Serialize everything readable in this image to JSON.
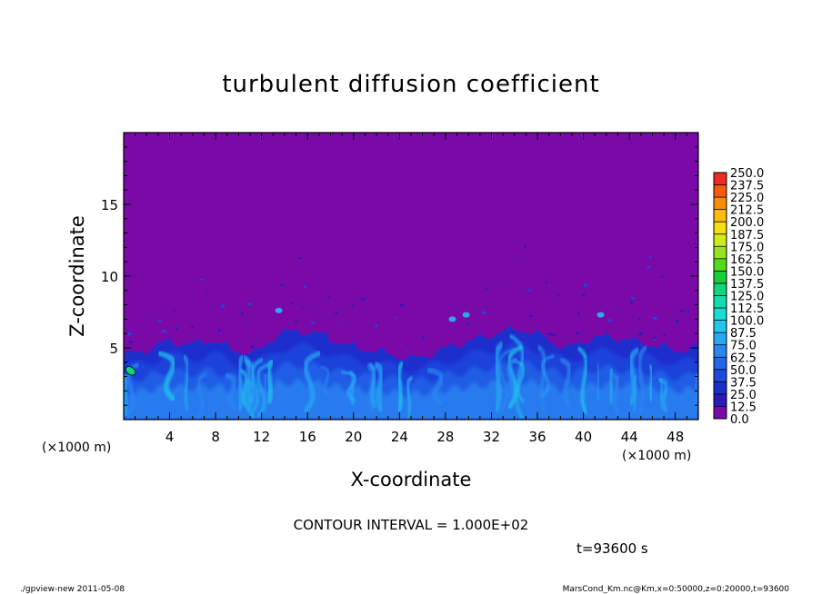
{
  "chart_data": {
    "type": "heatmap",
    "title": "turbulent diffusion coefficient",
    "xlabel": "X-coordinate",
    "ylabel": "Z-coordinate",
    "xunit": "(×1000 m)",
    "yunit": "(×1000 m)",
    "xlim": [
      0,
      50
    ],
    "ylim": [
      0,
      20
    ],
    "xticks": [
      "4",
      "8",
      "12",
      "16",
      "20",
      "24",
      "28",
      "32",
      "36",
      "40",
      "44",
      "48"
    ],
    "yticks": [
      "5",
      "10",
      "15"
    ],
    "colorbar": {
      "levels": [
        "0.0",
        "12.5",
        "25.0",
        "37.5",
        "50.0",
        "62.5",
        "75.0",
        "87.5",
        "100.0",
        "112.5",
        "125.0",
        "137.5",
        "150.0",
        "162.5",
        "175.0",
        "187.5",
        "200.0",
        "212.5",
        "225.0",
        "237.5",
        "250.0"
      ],
      "colors": [
        "#7a0aa8",
        "#2a1ab8",
        "#1e2ecc",
        "#1f48de",
        "#2266ea",
        "#2c86f2",
        "#28a8f4",
        "#22c6ee",
        "#19dcd6",
        "#14dcae",
        "#12d67a",
        "#1ccc3a",
        "#52d81c",
        "#98e21e",
        "#d0ea1c",
        "#f4e010",
        "#fcbc0a",
        "#fc8c08",
        "#f85a0c",
        "#f02a22",
        "#f27a8a"
      ]
    },
    "background_value": 0.0,
    "boundary_layer_top_km": [
      4.5,
      4.8,
      5.5,
      5.2,
      5.6,
      4.8,
      4.6,
      6.0,
      6.2,
      5.9,
      5.2,
      4.9,
      4.6,
      4.2,
      4.6,
      5.2,
      5.6,
      6.1,
      6.3,
      5.8,
      4.9,
      5.6,
      5.8,
      5.5,
      5.2,
      4.8,
      5.0
    ],
    "contour_interval": "CONTOUR INTERVAL = 1.000E+02",
    "time": "t=93600 s"
  },
  "footer": {
    "left": "./gpview-new  2011-05-08",
    "right": "MarsCond_Km.nc@Km,x=0:50000,z=0:20000,t=93600"
  },
  "colors": {
    "background": "#7a0aa8",
    "axes": "#000000"
  }
}
